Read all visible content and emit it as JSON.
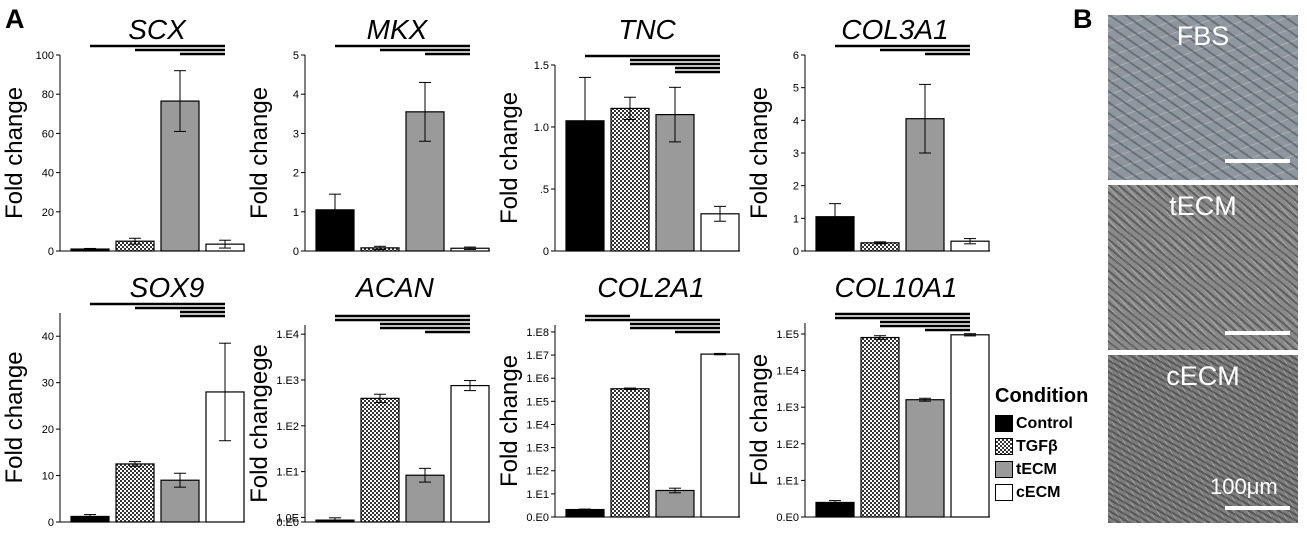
{
  "panel_labels": {
    "a": "A",
    "b": "B"
  },
  "y_label": "Fold change",
  "legend": {
    "title": "Condition",
    "items": [
      {
        "label": "Control",
        "fill": "#000000",
        "pattern": "solid"
      },
      {
        "label": "TGFβ",
        "fill": "#ffffff",
        "pattern": "checker"
      },
      {
        "label": "tECM",
        "fill": "#9a9a9a",
        "pattern": "solid"
      },
      {
        "label": "cECM",
        "fill": "#ffffff",
        "pattern": "solid"
      }
    ]
  },
  "images": [
    {
      "label": "FBS",
      "tone": "#8e96a0"
    },
    {
      "label": "tECM",
      "tone": "#8a8a8a"
    },
    {
      "label": "cECM",
      "tone": "#7d7d7d"
    }
  ],
  "scale_label": "100μm",
  "chart_data": [
    {
      "type": "bar",
      "title": "SCX",
      "ylabel": "Fold change",
      "scale": "linear",
      "ylim": [
        0,
        100
      ],
      "ticks": [
        0,
        20,
        40,
        60,
        80,
        100
      ],
      "tick_labels": [
        "0",
        "20",
        "40",
        "60",
        "80",
        "100"
      ],
      "categories": [
        "Control",
        "TGFβ",
        "tECM",
        "cECM"
      ],
      "values": [
        1,
        5,
        76.5,
        3.5
      ],
      "errors": [
        0.3,
        1.5,
        15.5,
        2
      ]
    },
    {
      "type": "bar",
      "title": "MKX",
      "ylabel": "Fold change",
      "scale": "linear",
      "ylim": [
        0,
        5
      ],
      "ticks": [
        0,
        1,
        2,
        3,
        4,
        5
      ],
      "tick_labels": [
        "0",
        "1",
        "2",
        "3",
        "4",
        "5"
      ],
      "categories": [
        "Control",
        "TGFβ",
        "tECM",
        "cECM"
      ],
      "values": [
        1.05,
        0.08,
        3.55,
        0.07
      ],
      "errors": [
        0.4,
        0.04,
        0.75,
        0.03
      ]
    },
    {
      "type": "bar",
      "title": "TNC",
      "ylabel": "Fold change",
      "scale": "linear",
      "ylim": [
        0,
        1.5
      ],
      "ticks": [
        0,
        0.5,
        1.0,
        1.5
      ],
      "tick_labels": [
        "0",
        ".5",
        "1.0",
        "1.5"
      ],
      "categories": [
        "Control",
        "TGFβ",
        "tECM",
        "cECM"
      ],
      "values": [
        1.05,
        1.15,
        1.1,
        0.3
      ],
      "errors": [
        0.35,
        0.09,
        0.22,
        0.06
      ]
    },
    {
      "type": "bar",
      "title": "COL3A1",
      "ylabel": "Fold change",
      "scale": "linear",
      "ylim": [
        0,
        6
      ],
      "ticks": [
        0,
        1,
        2,
        3,
        4,
        5,
        6
      ],
      "tick_labels": [
        "0",
        "1",
        "2",
        "3",
        "4",
        "5",
        "6"
      ],
      "categories": [
        "Control",
        "TGFβ",
        "tECM",
        "cECM"
      ],
      "values": [
        1.05,
        0.25,
        4.05,
        0.3
      ],
      "errors": [
        0.4,
        0.03,
        1.05,
        0.08
      ]
    },
    {
      "type": "bar",
      "title": "SOX9",
      "ylabel": "Fold change",
      "scale": "linear",
      "ylim": [
        0,
        45
      ],
      "ticks": [
        0,
        10,
        20,
        30,
        40
      ],
      "tick_labels": [
        "0",
        "10",
        "20",
        "30",
        "40"
      ],
      "categories": [
        "Control",
        "TGFβ",
        "tECM",
        "cECM"
      ],
      "values": [
        1.2,
        12.5,
        9,
        28
      ],
      "errors": [
        0.4,
        0.5,
        1.5,
        10.5
      ]
    },
    {
      "type": "bar",
      "title": "ACAN",
      "ylabel": "Fold changege",
      "scale": "log",
      "ylim": [
        0,
        4.3
      ],
      "ticks": [
        0,
        0.1,
        1.1,
        2.1,
        3.1,
        4.1
      ],
      "tick_labels": [
        "0.E0",
        "1.0E",
        "1.E1",
        "1.E2",
        "1.E3",
        "1.E4"
      ],
      "categories": [
        "Control",
        "TGFβ",
        "tECM",
        "cECM"
      ],
      "values": [
        1.1,
        500,
        10.5,
        950
      ],
      "errors": [
        0.05,
        0.09,
        0.15,
        0.11
      ]
    },
    {
      "type": "bar",
      "title": "COL2A1",
      "ylabel": "Fold change",
      "scale": "log",
      "ylim": [
        0,
        8.3
      ],
      "ticks": [
        0,
        1,
        2,
        3,
        4,
        5,
        6,
        7,
        8
      ],
      "tick_labels": [
        "0.E0",
        "1.E1",
        "1.E2",
        "1.E3",
        "1.E4",
        "1.E5",
        "1.E6",
        "1.E7",
        "1.E8"
      ],
      "categories": [
        "Control",
        "TGFβ",
        "tECM",
        "cECM"
      ],
      "values": [
        2.1,
        350000,
        14,
        11000000
      ],
      "errors": [
        0.02,
        0.03,
        0.1,
        0.03
      ]
    },
    {
      "type": "bar",
      "title": "COL10A1",
      "ylabel": "Fold change",
      "scale": "log",
      "ylim": [
        0,
        5.3
      ],
      "ticks": [
        0,
        1,
        2,
        3,
        4,
        5
      ],
      "tick_labels": [
        "0.E0",
        "1.E1",
        "1.E2",
        "1.E3",
        "1.E4",
        "1.E5"
      ],
      "categories": [
        "Control",
        "TGFβ",
        "tECM",
        "cECM"
      ],
      "values": [
        2.5,
        80000,
        1600,
        95000
      ],
      "errors": [
        0.05,
        0.05,
        0.04,
        0.03
      ]
    }
  ],
  "significance_bars": [
    [
      [
        0,
        3
      ],
      [
        1,
        3
      ],
      [
        2,
        3
      ]
    ],
    [
      [
        0,
        3
      ],
      [
        1,
        3
      ],
      [
        2,
        3
      ]
    ],
    [
      [
        0,
        3
      ],
      [
        1,
        3
      ],
      [
        1,
        3
      ],
      [
        2,
        3
      ],
      [
        2,
        3
      ]
    ],
    [
      [
        0,
        3
      ],
      [
        1,
        3
      ],
      [
        2,
        3
      ]
    ],
    [
      [
        0,
        3
      ],
      [
        1,
        3
      ],
      [
        2,
        3
      ],
      [
        2,
        3
      ]
    ],
    [
      [
        0,
        3
      ],
      [
        0,
        3
      ],
      [
        1,
        3
      ],
      [
        1,
        3
      ],
      [
        2,
        3
      ]
    ],
    [
      [
        0,
        1
      ],
      [
        0,
        3
      ],
      [
        1,
        3
      ],
      [
        1,
        3
      ],
      [
        2,
        3
      ]
    ],
    [
      [
        0,
        3
      ],
      [
        0,
        3
      ],
      [
        1,
        3
      ],
      [
        1,
        3
      ],
      [
        2,
        3
      ]
    ]
  ]
}
